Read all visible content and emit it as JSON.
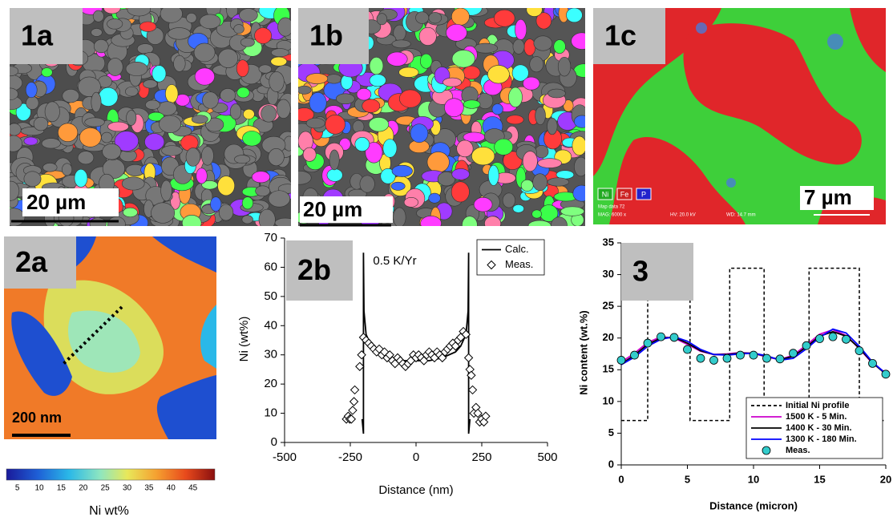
{
  "panels": [
    "1a",
    "1b",
    "1c",
    "2a",
    "2b",
    "3"
  ],
  "images": {
    "1a": {
      "scale": "20 µm"
    },
    "1b": {
      "scale": "20 µm"
    },
    "1c": {
      "scale": "7 µm",
      "elements": [
        "Ni",
        "Fe",
        "P"
      ],
      "info": [
        "Map data 72",
        "MAG: 6000 x",
        "HV: 20.0 kV",
        "WD: 14.7 mm"
      ]
    },
    "2a": {
      "scale": "200 nm",
      "colorbar": {
        "title": "Ni wt%",
        "range": [
          2.5,
          50
        ],
        "ticks": [
          5,
          10,
          15,
          20,
          25,
          30,
          35,
          40,
          45
        ]
      }
    }
  },
  "chart_data": [
    {
      "type": "line",
      "xlabel": "Distance (nm)",
      "ylabel": "Ni (wt%)",
      "annotation": "0.5 K/Yr",
      "xlim": [
        -500,
        500
      ],
      "xticks": [
        -500,
        -250,
        0,
        250,
        500
      ],
      "ylim": [
        0,
        70
      ],
      "yticks": [
        0,
        10,
        20,
        30,
        40,
        50,
        60,
        70
      ],
      "legend": "upper right",
      "series": [
        {
          "name": "Calc.",
          "color": "#000000",
          "marker": "none",
          "x": [
            -205,
            -203,
            -201,
            -200,
            -200,
            -198,
            -190,
            -170,
            -150,
            -100,
            -50,
            0,
            50,
            100,
            150,
            170,
            190,
            198,
            200,
            200,
            201,
            203,
            205
          ],
          "values": [
            8,
            6,
            4,
            3,
            65,
            45,
            37,
            33,
            31,
            29,
            28,
            28,
            28,
            29,
            31,
            33,
            37,
            45,
            65,
            3,
            4,
            6,
            8
          ]
        },
        {
          "name": "Meas.",
          "color": "#000000",
          "marker": "diamond",
          "x": [
            -265,
            -258,
            -252,
            -246,
            -241,
            -236,
            -233,
            -214,
            -207,
            -200,
            -190,
            -180,
            -170,
            -160,
            -150,
            -140,
            -130,
            -120,
            -110,
            -100,
            -90,
            -80,
            -70,
            -60,
            -50,
            -40,
            -30,
            -20,
            -10,
            0,
            10,
            20,
            30,
            40,
            50,
            60,
            70,
            80,
            90,
            100,
            110,
            120,
            130,
            140,
            150,
            160,
            170,
            180,
            190,
            200,
            205,
            210,
            215,
            220,
            228,
            235,
            242,
            250,
            258,
            265
          ],
          "values": [
            8,
            9,
            8,
            8,
            11,
            14,
            18,
            26,
            30,
            36,
            35,
            34,
            33,
            32,
            31,
            32,
            30,
            31,
            29,
            30,
            28,
            27,
            29,
            28,
            27,
            26,
            27,
            28,
            30,
            29,
            30,
            29,
            28,
            30,
            31,
            30,
            29,
            31,
            30,
            29,
            31,
            32,
            33,
            34,
            33,
            35,
            36,
            38,
            37,
            29,
            25,
            23,
            18,
            10,
            12,
            10,
            7,
            8,
            7,
            9
          ]
        }
      ]
    },
    {
      "type": "line",
      "xlabel": "Distance (micron)",
      "ylabel": "Ni content (wt.%)",
      "xlim": [
        0,
        20
      ],
      "xticks": [
        0,
        5,
        10,
        15,
        20
      ],
      "ylim": [
        0,
        35
      ],
      "yticks": [
        0,
        5,
        10,
        15,
        20,
        25,
        30,
        35
      ],
      "legend": "lower right",
      "series": [
        {
          "name": "Initial Ni profile",
          "color": "#000000",
          "dash": true,
          "marker": "none",
          "x": [
            0,
            2,
            2,
            5.2,
            5.2,
            8.2,
            8.2,
            10.8,
            10.8,
            14.2,
            14.2,
            18,
            18,
            20
          ],
          "values": [
            7,
            7,
            31,
            31,
            7,
            7,
            31,
            31,
            7,
            7,
            31,
            31,
            7,
            7
          ]
        },
        {
          "name": "1500 K - 5 Min.",
          "color": "#cc00cc",
          "marker": "none",
          "x": [
            0,
            1,
            2,
            3,
            4,
            5,
            6,
            7,
            8,
            9,
            10,
            11,
            12,
            13,
            14,
            15,
            16,
            17,
            18,
            19,
            20
          ],
          "values": [
            16.2,
            17.6,
            19.3,
            20.2,
            20.0,
            19.0,
            17.9,
            17.4,
            17.5,
            17.7,
            17.6,
            17.0,
            16.6,
            17.3,
            18.9,
            20.6,
            21.3,
            20.4,
            18.3,
            16.0,
            14.5
          ]
        },
        {
          "name": "1400 K - 30 Min.",
          "color": "#000000",
          "marker": "none",
          "x": [
            0,
            1,
            2,
            3,
            4,
            5,
            6,
            7,
            8,
            9,
            10,
            11,
            12,
            13,
            14,
            15,
            16,
            17,
            18,
            19,
            20
          ],
          "values": [
            15.9,
            17.3,
            19.0,
            20.0,
            20.1,
            19.2,
            18.0,
            17.4,
            17.4,
            17.6,
            17.6,
            17.1,
            16.6,
            17.1,
            18.6,
            20.3,
            21.0,
            20.3,
            18.4,
            16.1,
            14.3
          ]
        },
        {
          "name": "1300 K - 180 Min.",
          "color": "#0000ff",
          "marker": "none",
          "x": [
            0,
            1,
            2,
            3,
            4,
            5,
            6,
            7,
            8,
            9,
            10,
            11,
            12,
            13,
            14,
            15,
            16,
            17,
            18,
            19,
            20
          ],
          "values": [
            15.8,
            17.0,
            18.7,
            19.8,
            20.2,
            19.5,
            18.2,
            17.4,
            17.3,
            17.5,
            17.6,
            17.2,
            16.5,
            16.8,
            18.3,
            20.1,
            21.4,
            20.8,
            18.7,
            16.2,
            14.4
          ]
        },
        {
          "name": "Meas.",
          "color": "#33cccc",
          "marker": "circle",
          "x": [
            0,
            1,
            2,
            3,
            4,
            5,
            6,
            7,
            8,
            9,
            10,
            11,
            12,
            13,
            14,
            15,
            16,
            17,
            18,
            19,
            20
          ],
          "values": [
            16.5,
            17.3,
            19.2,
            20.2,
            20.1,
            18.2,
            16.8,
            16.5,
            16.8,
            17.3,
            17.3,
            16.8,
            16.7,
            17.6,
            18.8,
            19.9,
            20.2,
            19.8,
            18,
            16,
            14.3
          ]
        }
      ]
    }
  ]
}
